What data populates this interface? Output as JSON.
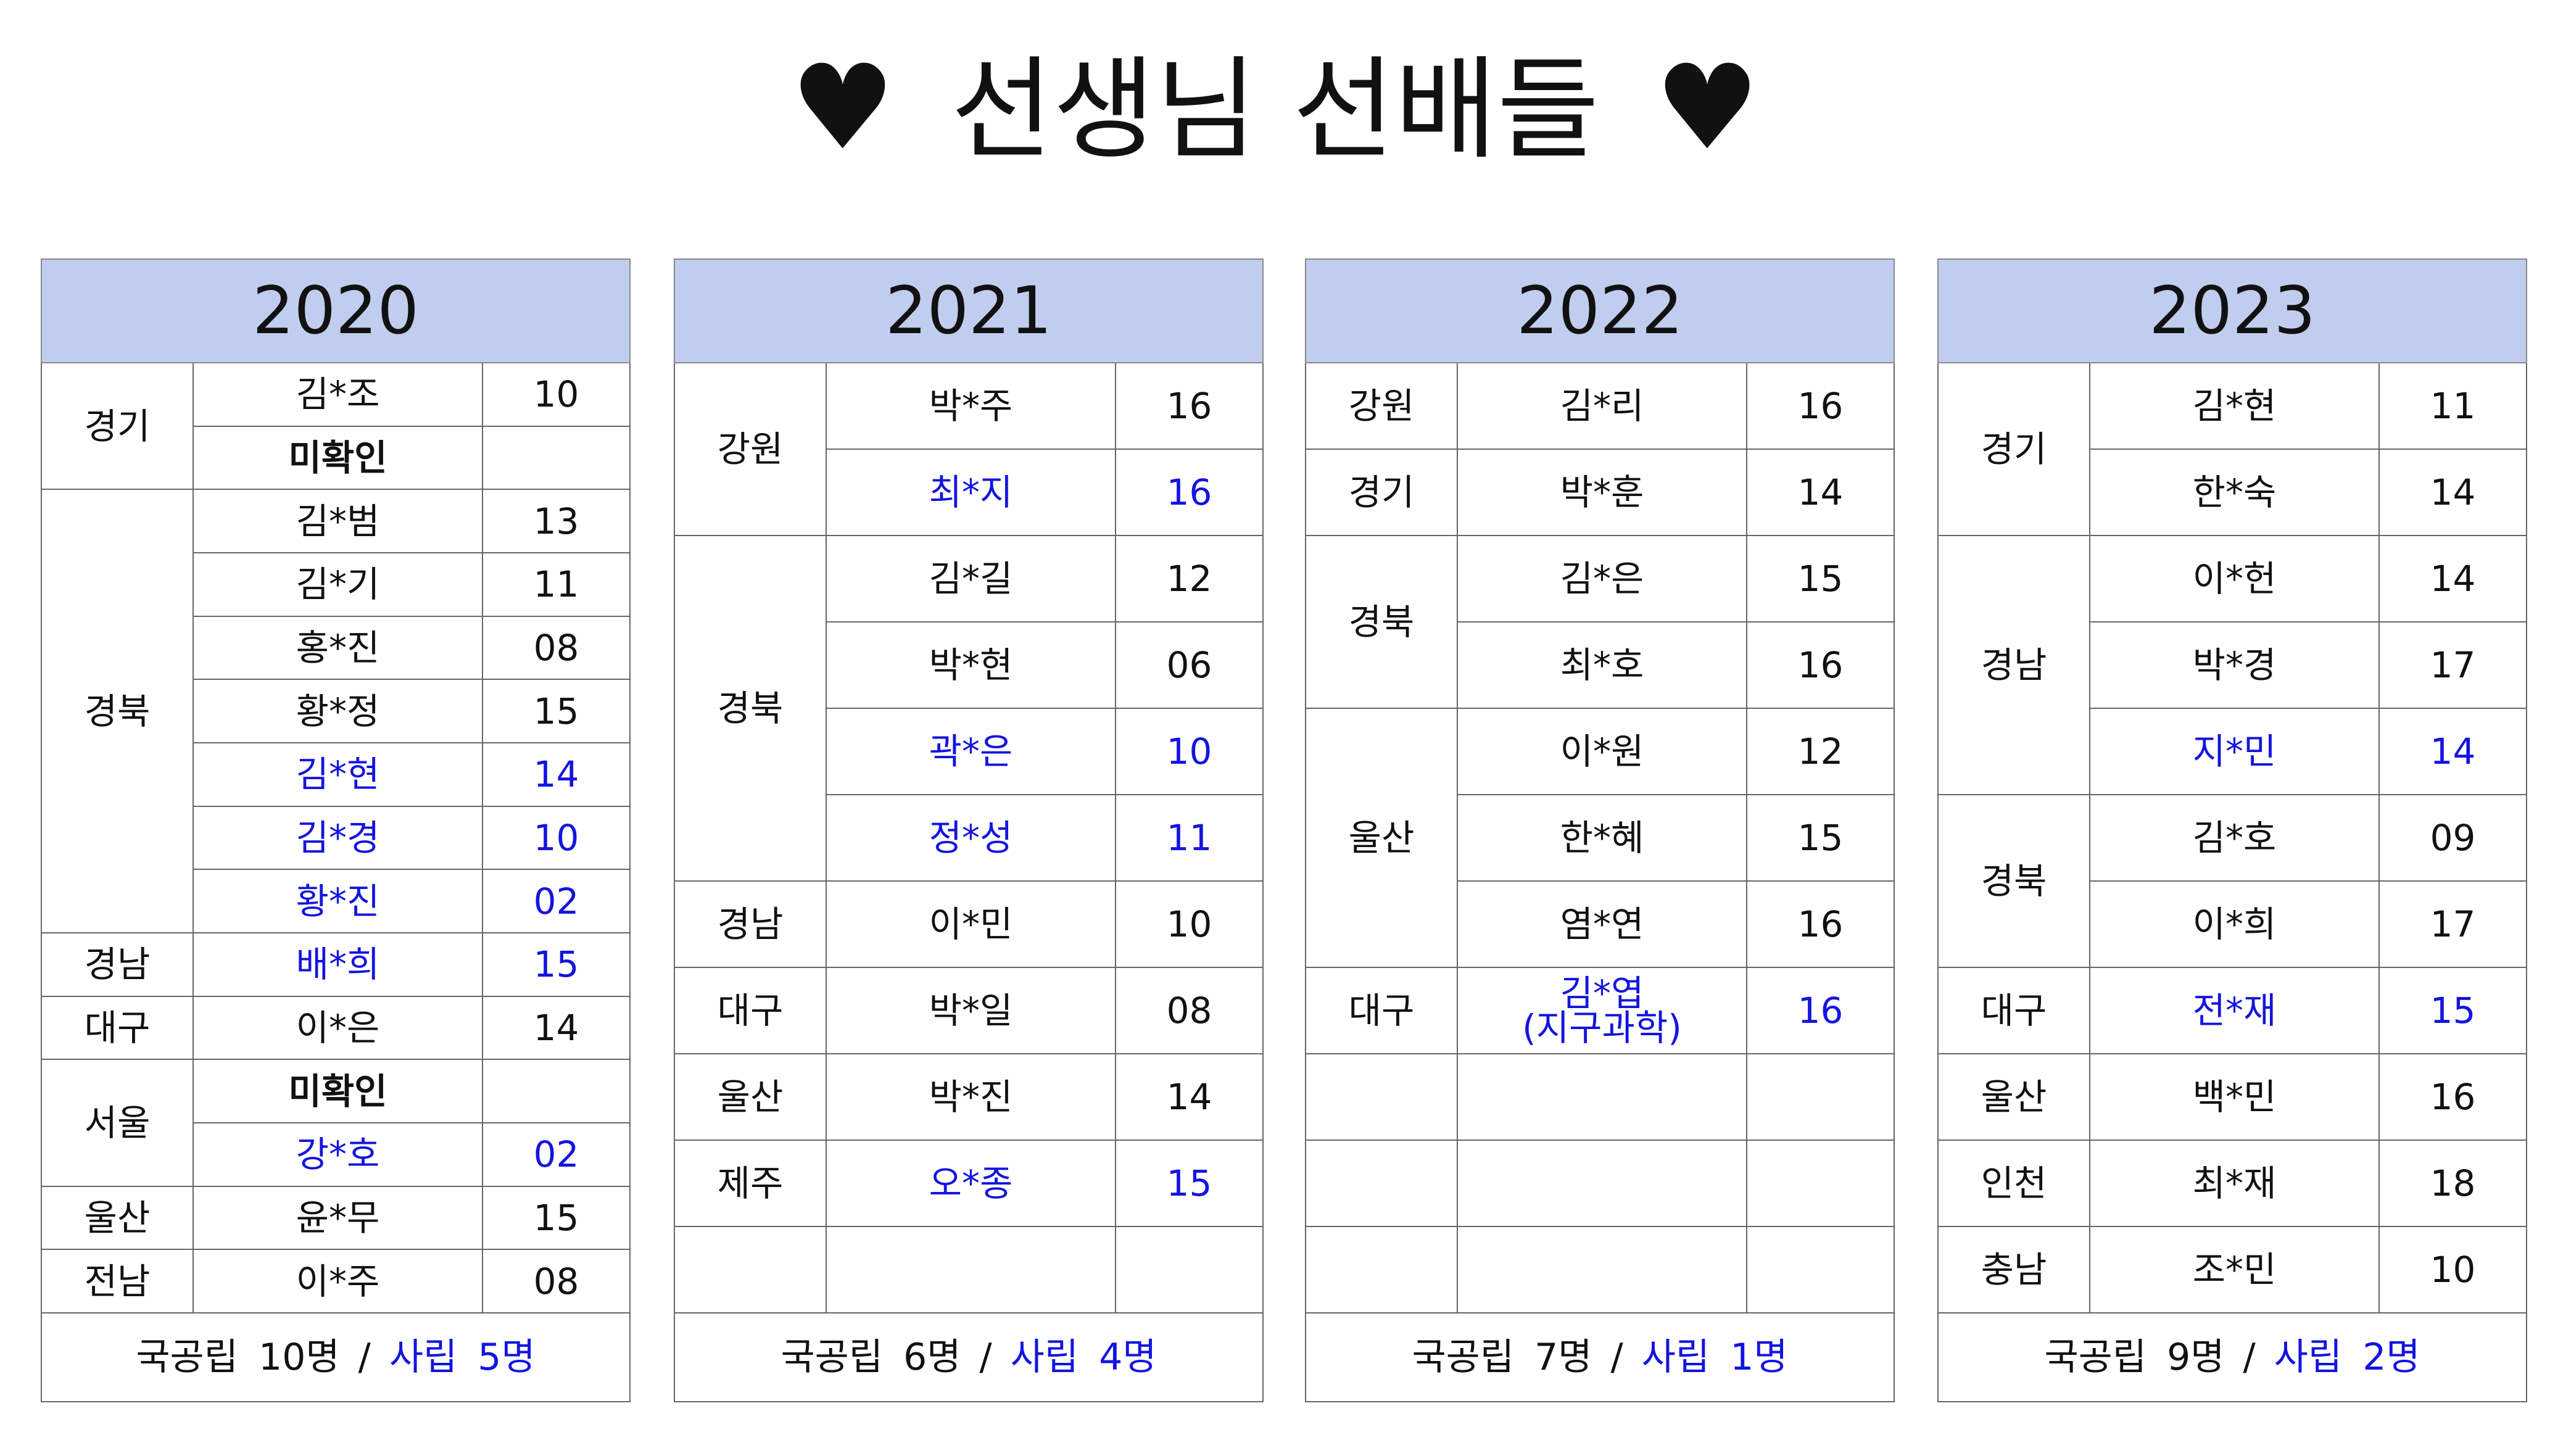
{
  "title": {
    "text": "선생님 선배들",
    "heart_icon": "♥"
  },
  "colors": {
    "header_bg": "#c1cdee",
    "private_text": "#1414e0"
  },
  "years": [
    {
      "year": "2020",
      "groups": [
        {
          "region": "경기",
          "people": [
            {
              "name": "김*조",
              "num": "10"
            },
            {
              "name": "미확인",
              "num": "",
              "bold": true
            }
          ]
        },
        {
          "region": "경북",
          "people": [
            {
              "name": "김*범",
              "num": "13"
            },
            {
              "name": "김*기",
              "num": "11"
            },
            {
              "name": "홍*진",
              "num": "08"
            },
            {
              "name": "황*정",
              "num": "15"
            },
            {
              "name": "김*현",
              "num": "14",
              "private": true
            },
            {
              "name": "김*경",
              "num": "10",
              "private": true
            },
            {
              "name": "황*진",
              "num": "02",
              "private": true
            }
          ]
        },
        {
          "region": "경남",
          "people": [
            {
              "name": "배*희",
              "num": "15",
              "private": true
            }
          ]
        },
        {
          "region": "대구",
          "people": [
            {
              "name": "이*은",
              "num": "14"
            }
          ]
        },
        {
          "region": "서울",
          "people": [
            {
              "name": "미확인",
              "num": "",
              "bold": true
            },
            {
              "name": "강*호",
              "num": "02",
              "private": true
            }
          ]
        },
        {
          "region": "울산",
          "people": [
            {
              "name": "윤*무",
              "num": "15"
            }
          ]
        },
        {
          "region": "전남",
          "people": [
            {
              "name": "이*주",
              "num": "08"
            }
          ]
        }
      ],
      "footer": {
        "public": "국공립 10명",
        "slash": "/",
        "private": "사립 5명"
      }
    },
    {
      "year": "2021",
      "groups": [
        {
          "region": "강원",
          "people": [
            {
              "name": "박*주",
              "num": "16"
            },
            {
              "name": "최*지",
              "num": "16",
              "private": true
            }
          ]
        },
        {
          "region": "경북",
          "people": [
            {
              "name": "김*길",
              "num": "12"
            },
            {
              "name": "박*현",
              "num": "06"
            },
            {
              "name": "곽*은",
              "num": "10",
              "private": true
            },
            {
              "name": "정*성",
              "num": "11",
              "private": true
            }
          ]
        },
        {
          "region": "경남",
          "people": [
            {
              "name": "이*민",
              "num": "10"
            }
          ]
        },
        {
          "region": "대구",
          "people": [
            {
              "name": "박*일",
              "num": "08"
            }
          ]
        },
        {
          "region": "울산",
          "people": [
            {
              "name": "박*진",
              "num": "14"
            }
          ]
        },
        {
          "region": "제주",
          "people": [
            {
              "name": "오*종",
              "num": "15",
              "private": true
            }
          ]
        }
      ],
      "footer": {
        "public": "국공립 6명",
        "slash": "/",
        "private": "사립 4명"
      }
    },
    {
      "year": "2022",
      "groups": [
        {
          "region": "강원",
          "people": [
            {
              "name": "김*리",
              "num": "16"
            }
          ]
        },
        {
          "region": "경기",
          "people": [
            {
              "name": "박*훈",
              "num": "14"
            }
          ]
        },
        {
          "region": "경북",
          "people": [
            {
              "name": "김*은",
              "num": "15"
            },
            {
              "name": "최*호",
              "num": "16"
            }
          ]
        },
        {
          "region": "울산",
          "people": [
            {
              "name": "이*원",
              "num": "12"
            },
            {
              "name": "한*혜",
              "num": "15"
            },
            {
              "name": "염*연",
              "num": "16"
            }
          ]
        },
        {
          "region": "대구",
          "people": [
            {
              "name": "김*엽",
              "note": "(지구과학)",
              "num": "16",
              "private": true
            }
          ]
        }
      ],
      "footer": {
        "public": "국공립 7명",
        "slash": "/",
        "private": "사립 1명"
      }
    },
    {
      "year": "2023",
      "groups": [
        {
          "region": "경기",
          "people": [
            {
              "name": "김*현",
              "num": "11"
            },
            {
              "name": "한*숙",
              "num": "14"
            }
          ]
        },
        {
          "region": "경남",
          "people": [
            {
              "name": "이*헌",
              "num": "14"
            },
            {
              "name": "박*경",
              "num": "17"
            },
            {
              "name": "지*민",
              "num": "14",
              "private": true
            }
          ]
        },
        {
          "region": "경북",
          "people": [
            {
              "name": "김*호",
              "num": "09"
            },
            {
              "name": "이*희",
              "num": "17"
            }
          ]
        },
        {
          "region": "대구",
          "people": [
            {
              "name": "전*재",
              "num": "15",
              "private": true
            }
          ]
        },
        {
          "region": "울산",
          "people": [
            {
              "name": "백*민",
              "num": "16"
            }
          ]
        },
        {
          "region": "인천",
          "people": [
            {
              "name": "최*재",
              "num": "18"
            }
          ]
        },
        {
          "region": "충남",
          "people": [
            {
              "name": "조*민",
              "num": "10"
            }
          ]
        }
      ],
      "footer": {
        "public": "국공립 9명",
        "slash": "/",
        "private": "사립 2명"
      }
    }
  ]
}
